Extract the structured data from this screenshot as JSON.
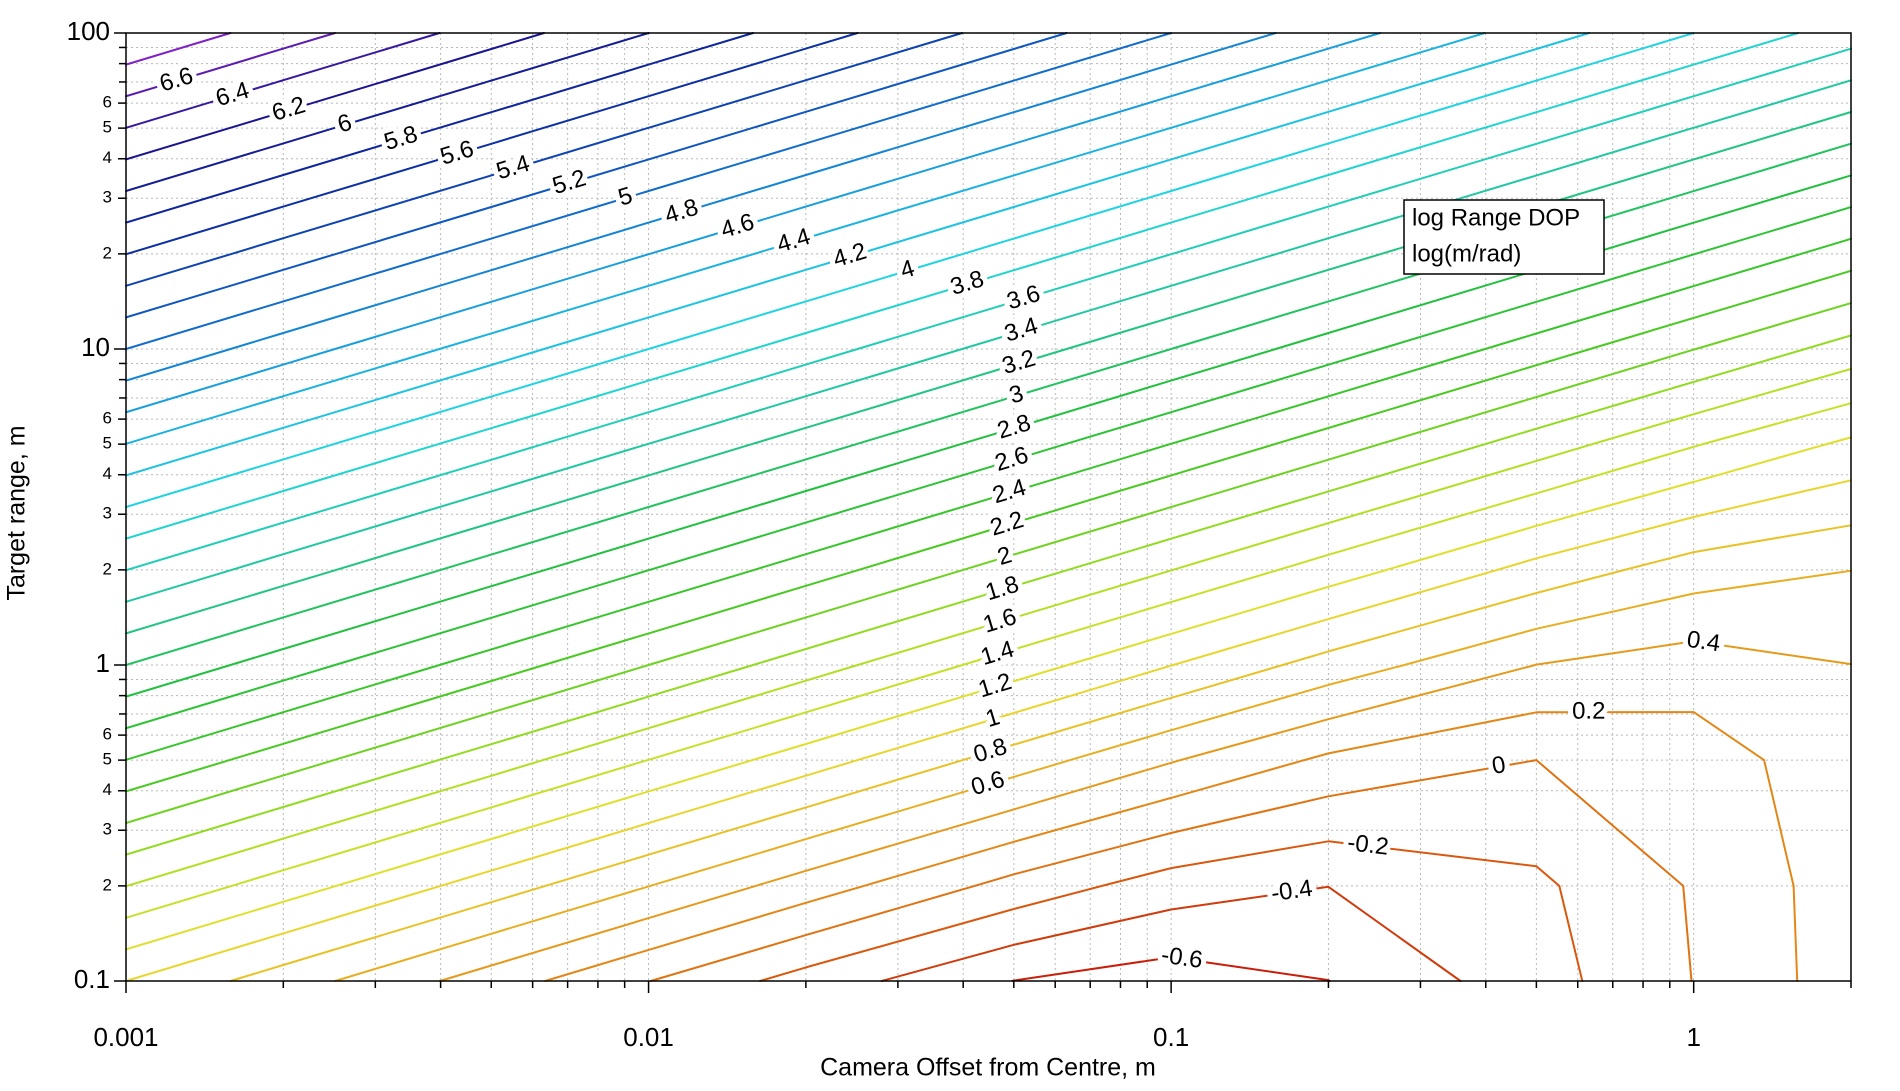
{
  "chart_data": {
    "type": "contour",
    "x_label": "Camera Offset from Centre, m",
    "y_label": "Target range, m",
    "annotation": [
      "log Range DOP",
      "log(m/rad)"
    ],
    "xlog": true,
    "ylog": true,
    "grid": true,
    "xlim": [
      0.001,
      2
    ],
    "ylim": [
      0.1,
      100
    ],
    "xticks": [
      0.001,
      0.01,
      0.1,
      1
    ],
    "xminorticks": [
      0.002,
      0.003,
      0.004,
      0.005,
      0.006,
      0.007,
      0.008,
      0.009,
      0.02,
      0.03,
      0.04,
      0.05,
      0.06,
      0.07,
      0.08,
      0.09,
      0.2,
      0.3,
      0.4,
      0.5,
      0.6,
      0.7,
      0.8,
      0.9,
      2
    ],
    "yticks": [
      0.1,
      {
        "value": 0.2,
        "label": "2"
      },
      {
        "value": 0.3,
        "label": "3"
      },
      {
        "value": 0.4,
        "label": "4"
      },
      {
        "value": 0.5,
        "label": "5"
      },
      {
        "value": 0.6,
        "label": "6"
      },
      1,
      2,
      3,
      4,
      5,
      6,
      10,
      {
        "value": 20,
        "label": "2"
      },
      {
        "value": 30,
        "label": "3"
      },
      {
        "value": 40,
        "label": "4"
      },
      {
        "value": 50,
        "label": "5"
      },
      {
        "value": 60,
        "label": "6"
      },
      100
    ],
    "yminorticks": [
      0.7,
      0.8,
      0.9,
      7,
      8,
      9,
      70,
      80,
      90
    ],
    "x": [
      0.001,
      0.002,
      0.005,
      0.01,
      0.02,
      0.05,
      0.1,
      0.2,
      0.5,
      1,
      2
    ],
    "y": [
      0.1,
      0.2,
      0.5,
      1,
      2,
      5,
      10,
      20,
      50,
      100
    ],
    "z": [
      [
        1.0,
        0.699,
        0.302,
        0.004,
        -0.284,
        -0.602,
        -0.699,
        -0.602,
        -0.284,
        0.004,
        0.302
      ],
      [
        1.602,
        1.301,
        0.903,
        0.603,
        0.305,
        -0.071,
        -0.301,
        -0.398,
        -0.237,
        0.017,
        0.305
      ],
      [
        2.398,
        2.097,
        1.699,
        1.398,
        1.098,
        0.703,
        0.415,
        0.161,
        0.0,
        0.097,
        0.327
      ],
      [
        3.0,
        2.699,
        2.301,
        2.0,
        1.699,
        1.302,
        1.004,
        0.716,
        0.398,
        0.301,
        0.398
      ],
      [
        3.602,
        3.301,
        2.903,
        2.602,
        2.301,
        1.903,
        1.603,
        1.305,
        0.929,
        0.699,
        0.602
      ],
      [
        4.398,
        4.097,
        3.699,
        3.398,
        3.097,
        2.699,
        2.398,
        2.098,
        1.703,
        1.415,
        1.161
      ],
      [
        5.0,
        4.699,
        4.301,
        4.0,
        3.699,
        3.301,
        3.0,
        2.699,
        2.302,
        2.004,
        1.716
      ],
      [
        5.602,
        5.301,
        4.903,
        4.602,
        4.301,
        3.903,
        3.602,
        3.301,
        2.903,
        2.603,
        2.305
      ],
      [
        6.398,
        6.097,
        5.699,
        5.398,
        5.097,
        4.699,
        4.398,
        4.097,
        3.699,
        3.398,
        3.098
      ],
      [
        7.0,
        6.699,
        6.301,
        6.0,
        5.699,
        5.301,
        5.0,
        4.699,
        4.301,
        4.0,
        3.699
      ]
    ],
    "levels": [
      -0.6,
      -0.4,
      -0.2,
      0,
      0.2,
      0.4,
      0.6,
      0.8,
      1,
      1.2,
      1.4,
      1.6,
      1.8,
      2,
      2.2,
      2.4,
      2.6,
      2.8,
      3,
      3.2,
      3.4,
      3.6,
      3.8,
      4,
      4.2,
      4.4,
      4.6,
      4.8,
      5,
      5.2,
      5.4,
      5.6,
      5.8,
      6,
      6.2,
      6.4,
      6.6,
      6.8
    ],
    "colormap": [
      "#c81e0a",
      "#e07010",
      "#e8a820",
      "#e8e030",
      "#a8e020",
      "#40c820",
      "#20c040",
      "#20c8a0",
      "#20d8e0",
      "#18a8e0",
      "#1060c8",
      "#0c2aa0",
      "#1a1490",
      "#8020c8"
    ]
  }
}
